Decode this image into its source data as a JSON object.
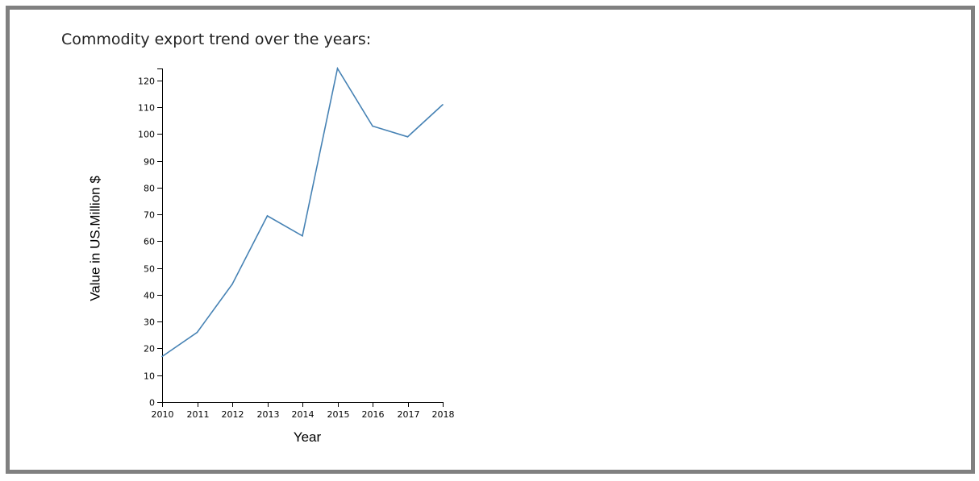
{
  "page": {
    "title": "Commodity export trend over the years:"
  },
  "chart_data": {
    "type": "line",
    "title": "",
    "xlabel": "Year",
    "ylabel": "Value in US.Million $",
    "x": [
      2010,
      2011,
      2012,
      2013,
      2014,
      2015,
      2016,
      2017,
      2018
    ],
    "series": [
      {
        "values": [
          17,
          26,
          44,
          69.5,
          62,
          124.5,
          103,
          99,
          111
        ]
      }
    ],
    "ylim": [
      0,
      124.5
    ],
    "yticks": [
      0,
      10,
      20,
      30,
      40,
      50,
      60,
      70,
      80,
      90,
      100,
      110,
      120
    ],
    "grid": false,
    "legend": "none",
    "colors": {
      "line": "#4682b4",
      "axis": "#000000",
      "frame": "#808080"
    }
  }
}
